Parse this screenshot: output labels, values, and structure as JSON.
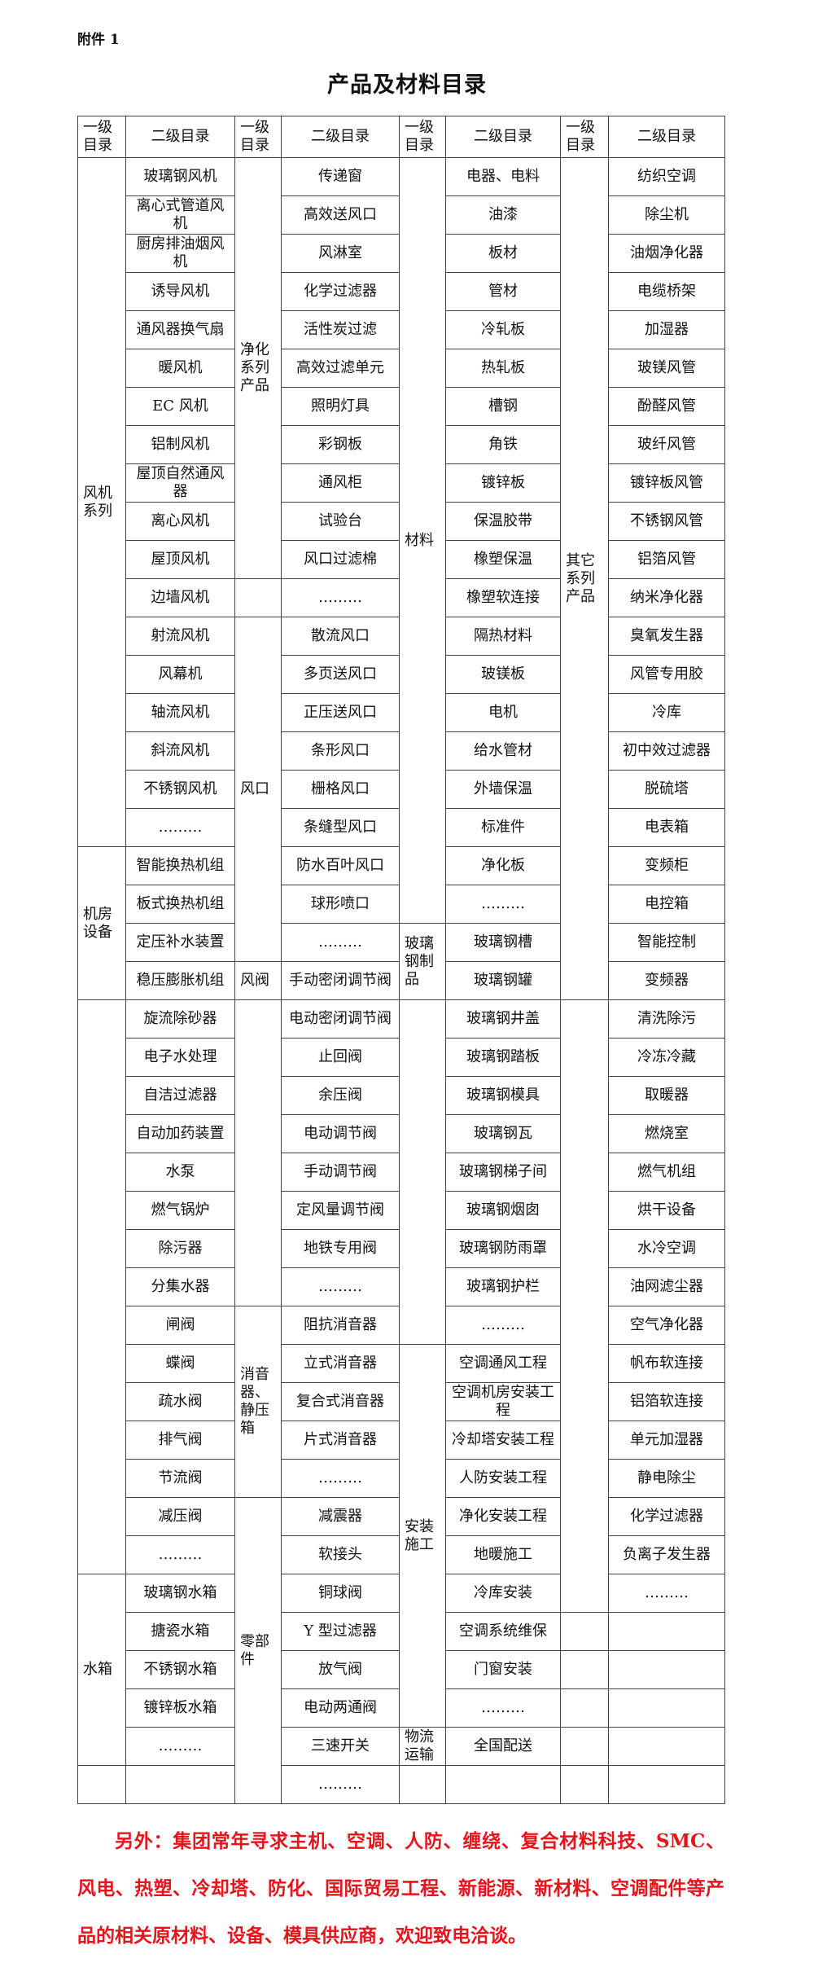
{
  "attachment_label": "附件 1",
  "title": "产品及材料目录",
  "header": {
    "level1": "一级目录",
    "level2": "二级目录"
  },
  "columns": [
    {
      "groups": [
        {
          "label": "风机系列",
          "items": [
            "玻璃钢风机",
            "离心式管道风机",
            "厨房排油烟风机",
            "诱导风机",
            "通风器换气扇",
            "暖风机",
            "EC 风机",
            "铝制风机",
            "屋顶自然通风器",
            "离心风机",
            "屋顶风机",
            "边墙风机",
            "射流风机",
            "风幕机",
            "轴流风机",
            "斜流风机",
            "不锈钢风机",
            "………"
          ]
        },
        {
          "label": "机房设备",
          "items": [
            "智能换热机组",
            "板式换热机组",
            "定压补水装置",
            "稳压膨胀机组"
          ]
        },
        {
          "label": "",
          "items": [
            "旋流除砂器",
            "电子水处理",
            "自洁过滤器",
            "自动加药装置",
            "水泵",
            "燃气锅炉",
            "除污器",
            "分集水器",
            "闸阀",
            "蝶阀",
            "疏水阀",
            "排气阀",
            "节流阀",
            "减压阀",
            "………"
          ]
        },
        {
          "label": "水箱",
          "items": [
            "玻璃钢水箱",
            "搪瓷水箱",
            "不锈钢水箱",
            "镀锌板水箱",
            "………"
          ]
        },
        {
          "label": "",
          "items": [
            ""
          ]
        }
      ]
    },
    {
      "groups": [
        {
          "label": "净化系列产品",
          "items": [
            "传递窗",
            "高效送风口",
            "风淋室",
            "化学过滤器",
            "活性炭过滤",
            "高效过滤单元",
            "照明灯具",
            "彩钢板",
            "通风柜",
            "试验台",
            "风口过滤棉"
          ]
        },
        {
          "label": "",
          "items": [
            "………"
          ]
        },
        {
          "label": "风口",
          "items": [
            "散流风口",
            "多页送风口",
            "正压送风口",
            "条形风口",
            "栅格风口",
            "条缝型风口",
            "防水百叶风口",
            "球形喷口",
            "………"
          ]
        },
        {
          "label": "风阀",
          "items": [
            "手动密闭调节阀"
          ]
        },
        {
          "label": "",
          "items": [
            "电动密闭调节阀",
            "止回阀",
            "余压阀",
            "电动调节阀",
            "手动调节阀",
            "定风量调节阀",
            "地铁专用阀",
            "………"
          ]
        },
        {
          "label": "消音器、静压箱",
          "items": [
            "阻抗消音器",
            "立式消音器",
            "复合式消音器",
            "片式消音器",
            "………"
          ]
        },
        {
          "label": "零部件",
          "items": [
            "减震器",
            "软接头",
            "铜球阀",
            "Y 型过滤器",
            "放气阀",
            "电动两通阀",
            "三速开关",
            "………"
          ]
        }
      ]
    },
    {
      "groups": [
        {
          "label": "材料",
          "items": [
            "电器、电料",
            "油漆",
            "板材",
            "管材",
            "冷轧板",
            "热轧板",
            "槽钢",
            "角铁",
            "镀锌板",
            "保温胶带",
            "橡塑保温",
            "橡塑软连接",
            "隔热材料",
            "玻镁板",
            "电机",
            "给水管材",
            "外墙保温",
            "标准件",
            "净化板",
            "………"
          ]
        },
        {
          "label": "玻璃钢制品",
          "items": [
            "玻璃钢槽",
            "玻璃钢罐"
          ]
        },
        {
          "label": "",
          "items": [
            "玻璃钢井盖",
            "玻璃钢踏板",
            "玻璃钢模具",
            "玻璃钢瓦",
            "玻璃钢梯子间",
            "玻璃钢烟囱",
            "玻璃钢防雨罩",
            "玻璃钢护栏",
            "………"
          ]
        },
        {
          "label": "安装施工",
          "items": [
            "空调通风工程",
            "空调机房安装工程",
            "冷却塔安装工程",
            "人防安装工程",
            "净化安装工程",
            "地暖施工",
            "冷库安装",
            "空调系统维保",
            "门窗安装",
            "………"
          ]
        },
        {
          "label": "物流运输",
          "items": [
            "全国配送"
          ]
        },
        {
          "label": "",
          "items": [
            ""
          ]
        }
      ]
    },
    {
      "groups": [
        {
          "label": "其它系列产品",
          "items": [
            "纺织空调",
            "除尘机",
            "油烟净化器",
            "电缆桥架",
            "加湿器",
            "玻镁风管",
            "酚醛风管",
            "玻纤风管",
            "镀锌板风管",
            "不锈钢风管",
            "铝箔风管",
            "纳米净化器",
            "臭氧发生器",
            "风管专用胶",
            "冷库",
            "初中效过滤器",
            "脱硫塔",
            "电表箱",
            "变频柜",
            "电控箱",
            "智能控制",
            "变频器"
          ]
        },
        {
          "label": "",
          "items": [
            "清洗除污",
            "冷冻冷藏",
            "取暖器",
            "燃烧室",
            "燃气机组",
            "烘干设备",
            "水冷空调",
            "油网滤尘器",
            "空气净化器",
            "帆布软连接",
            "铝箔软连接",
            "单元加湿器",
            "静电除尘",
            "化学过滤器",
            "负离子发生器",
            "………"
          ]
        },
        {
          "label": "",
          "items": [
            ""
          ]
        },
        {
          "label": "",
          "items": [
            ""
          ]
        },
        {
          "label": "",
          "items": [
            ""
          ]
        },
        {
          "label": "",
          "items": [
            ""
          ]
        },
        {
          "label": "",
          "items": [
            ""
          ]
        }
      ]
    }
  ],
  "footer_note": "另外：集团常年寻求主机、空调、人防、缠绕、复合材料科技、SMC、风电、热塑、冷却塔、防化、国际贸易工程、新能源、新材料、空调配件等产品的相关原材料、设备、模具供应商，欢迎致电洽谈。",
  "colors": {
    "footer_text": "#e8141b",
    "border": "#444444"
  }
}
